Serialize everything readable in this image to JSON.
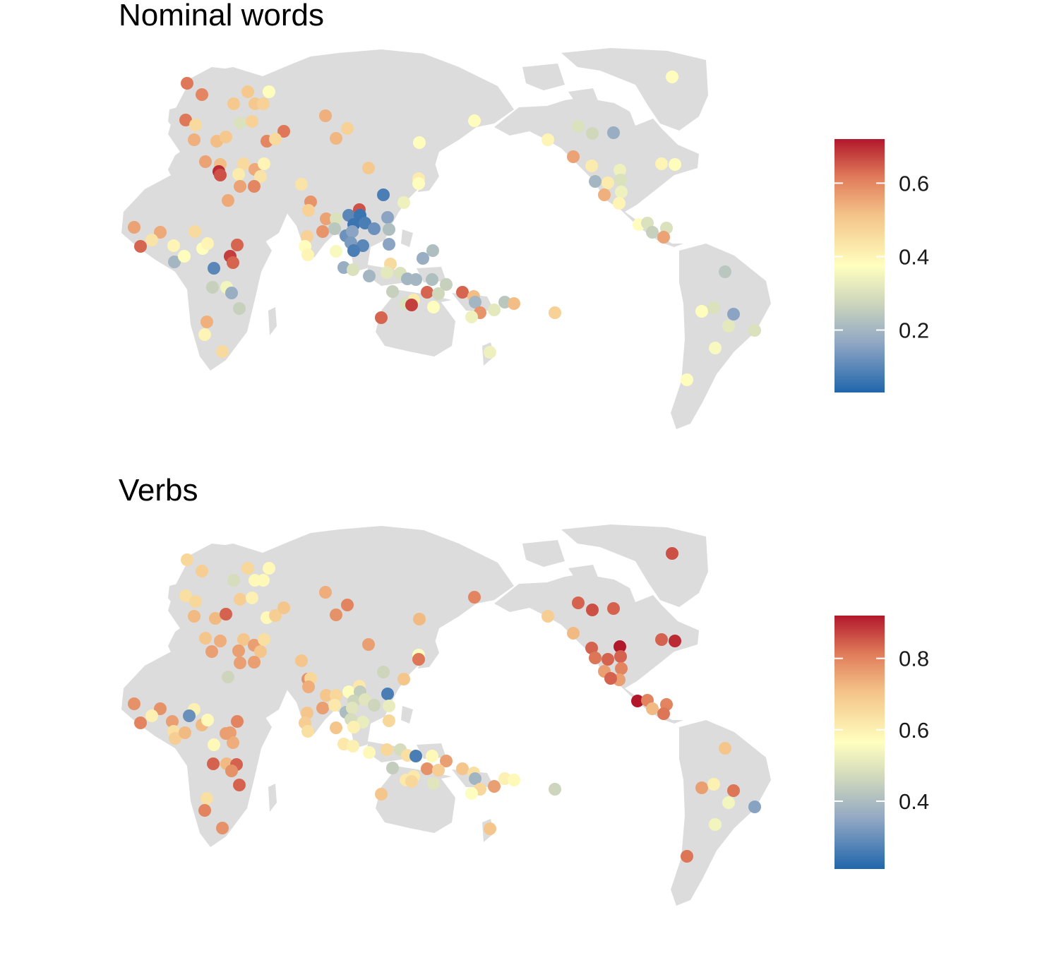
{
  "panels": [
    {
      "title": "Nominal words",
      "legend": {
        "ticks": [
          "0.6",
          "0.4",
          "0.2"
        ],
        "tick_values": [
          0.6,
          0.4,
          0.2
        ],
        "range": [
          0.03,
          0.72
        ]
      },
      "points": [
        [
          265,
          118,
          0.62
        ],
        [
          286,
          134,
          0.6
        ],
        [
          263,
          170,
          0.62
        ],
        [
          277,
          177,
          0.46
        ],
        [
          275,
          198,
          0.54
        ],
        [
          351,
          130,
          0.5
        ],
        [
          381,
          130,
          0.38
        ],
        [
          331,
          147,
          0.5
        ],
        [
          361,
          147,
          0.5
        ],
        [
          373,
          147,
          0.48
        ],
        [
          340,
          174,
          0.3
        ],
        [
          357,
          172,
          0.48
        ],
        [
          402,
          186,
          0.62
        ],
        [
          378,
          200,
          0.6
        ],
        [
          390,
          197,
          0.46
        ],
        [
          307,
          200,
          0.52
        ],
        [
          320,
          194,
          0.5
        ],
        [
          291,
          229,
          0.56
        ],
        [
          312,
          233,
          0.52
        ],
        [
          310,
          243,
          0.7
        ],
        [
          312,
          248,
          0.66
        ],
        [
          345,
          232,
          0.46
        ],
        [
          338,
          247,
          0.42
        ],
        [
          361,
          240,
          0.55
        ],
        [
          369,
          250,
          0.44
        ],
        [
          374,
          232,
          0.4
        ],
        [
          340,
          264,
          0.56
        ],
        [
          360,
          264,
          0.6
        ],
        [
          323,
          284,
          0.55
        ],
        [
          190,
          322,
          0.56
        ],
        [
          227,
          329,
          0.55
        ],
        [
          199,
          349,
          0.64
        ],
        [
          215,
          340,
          0.44
        ],
        [
          246,
          348,
          0.4
        ],
        [
          247,
          371,
          0.2
        ],
        [
          261,
          363,
          0.38
        ],
        [
          276,
          328,
          0.46
        ],
        [
          287,
          352,
          0.38
        ],
        [
          294,
          345,
          0.4
        ],
        [
          303,
          380,
          0.1
        ],
        [
          326,
          363,
          0.68
        ],
        [
          336,
          347,
          0.64
        ],
        [
          330,
          372,
          0.64
        ],
        [
          301,
          407,
          0.26
        ],
        [
          321,
          407,
          0.35
        ],
        [
          328,
          415,
          0.18
        ],
        [
          339,
          437,
          0.26
        ],
        [
          293,
          456,
          0.54
        ],
        [
          290,
          474,
          0.4
        ],
        [
          315,
          498,
          0.46
        ],
        [
          461,
          164,
          0.54
        ],
        [
          476,
          196,
          0.53
        ],
        [
          492,
          182,
          0.48
        ],
        [
          522,
          238,
          0.5
        ],
        [
          427,
          261,
          0.44
        ],
        [
          440,
          286,
          0.58
        ],
        [
          437,
          298,
          0.48
        ],
        [
          462,
          310,
          0.56
        ],
        [
          457,
          328,
          0.58
        ],
        [
          435,
          335,
          0.48
        ],
        [
          432,
          349,
          0.38
        ],
        [
          436,
          361,
          0.4
        ],
        [
          476,
          310,
          0.3
        ],
        [
          474,
          324,
          0.24
        ],
        [
          494,
          305,
          0.1
        ],
        [
          509,
          297,
          0.66
        ],
        [
          510,
          305,
          0.06
        ],
        [
          501,
          318,
          0.06
        ],
        [
          517,
          316,
          0.08
        ],
        [
          530,
          324,
          0.12
        ],
        [
          490,
          334,
          0.12
        ],
        [
          499,
          328,
          0.16
        ],
        [
          497,
          344,
          0.14
        ],
        [
          514,
          348,
          0.1
        ],
        [
          501,
          355,
          0.08
        ],
        [
          476,
          356,
          0.36
        ],
        [
          487,
          379,
          0.18
        ],
        [
          500,
          382,
          0.3
        ],
        [
          523,
          391,
          0.2
        ],
        [
          543,
          276,
          0.08
        ],
        [
          549,
          308,
          0.16
        ],
        [
          551,
          325,
          0.22
        ],
        [
          551,
          346,
          0.16
        ],
        [
          572,
          287,
          0.34
        ],
        [
          594,
          202,
          0.38
        ],
        [
          593,
          253,
          0.42
        ],
        [
          593,
          260,
          0.38
        ],
        [
          672,
          171,
          0.38
        ],
        [
          599,
          366,
          0.18
        ],
        [
          613,
          355,
          0.22
        ],
        [
          553,
          374,
          0.46
        ],
        [
          548,
          386,
          0.32
        ],
        [
          567,
          387,
          0.3
        ],
        [
          556,
          413,
          0.26
        ],
        [
          577,
          395,
          0.2
        ],
        [
          589,
          396,
          0.2
        ],
        [
          612,
          396,
          0.22
        ],
        [
          632,
          403,
          0.26
        ],
        [
          605,
          414,
          0.64
        ],
        [
          621,
          416,
          0.28
        ],
        [
          586,
          425,
          0.42
        ],
        [
          575,
          430,
          0.3
        ],
        [
          583,
          432,
          0.68
        ],
        [
          614,
          435,
          0.38
        ],
        [
          540,
          450,
          0.64
        ],
        [
          655,
          414,
          0.64
        ],
        [
          671,
          420,
          0.52
        ],
        [
          673,
          428,
          0.2
        ],
        [
          680,
          443,
          0.58
        ],
        [
          668,
          449,
          0.34
        ],
        [
          700,
          439,
          0.32
        ],
        [
          715,
          428,
          0.24
        ],
        [
          728,
          430,
          0.52
        ],
        [
          786,
          443,
          0.48
        ],
        [
          694,
          499,
          0.34
        ],
        [
          776,
          198,
          0.4
        ],
        [
          812,
          222,
          0.56
        ],
        [
          819,
          179,
          0.3
        ],
        [
          839,
          189,
          0.28
        ],
        [
          869,
          188,
          0.18
        ],
        [
          952,
          109,
          0.38
        ],
        [
          838,
          235,
          0.42
        ],
        [
          843,
          257,
          0.2
        ],
        [
          861,
          259,
          0.42
        ],
        [
          856,
          276,
          0.54
        ],
        [
          878,
          241,
          0.34
        ],
        [
          879,
          255,
          0.3
        ],
        [
          880,
          272,
          0.34
        ],
        [
          877,
          288,
          0.4
        ],
        [
          937,
          232,
          0.4
        ],
        [
          956,
          233,
          0.38
        ],
        [
          905,
          318,
          0.38
        ],
        [
          917,
          316,
          0.3
        ],
        [
          924,
          329,
          0.26
        ],
        [
          944,
          323,
          0.3
        ],
        [
          940,
          336,
          0.56
        ],
        [
          1027,
          385,
          0.24
        ],
        [
          994,
          441,
          0.38
        ],
        [
          1011,
          436,
          0.3
        ],
        [
          1039,
          445,
          0.16
        ],
        [
          1032,
          462,
          0.32
        ],
        [
          1069,
          468,
          0.3
        ],
        [
          1013,
          493,
          0.36
        ],
        [
          973,
          538,
          0.38
        ]
      ]
    },
    {
      "title": "Verbs",
      "legend": {
        "ticks": [
          "0.8",
          "0.6",
          "0.4"
        ],
        "tick_values": [
          0.8,
          0.6,
          0.4
        ],
        "range": [
          0.21,
          0.92
        ]
      },
      "points": [
        [
          265,
          793,
          0.66
        ],
        [
          286,
          809,
          0.68
        ],
        [
          263,
          844,
          0.64
        ],
        [
          277,
          852,
          0.66
        ],
        [
          275,
          873,
          0.72
        ],
        [
          305,
          876,
          0.72
        ],
        [
          320,
          870,
          0.84
        ],
        [
          351,
          805,
          0.66
        ],
        [
          381,
          805,
          0.58
        ],
        [
          331,
          822,
          0.48
        ],
        [
          361,
          822,
          0.58
        ],
        [
          373,
          822,
          0.58
        ],
        [
          340,
          849,
          0.68
        ],
        [
          357,
          847,
          0.6
        ],
        [
          378,
          875,
          0.58
        ],
        [
          390,
          872,
          0.68
        ],
        [
          402,
          861,
          0.7
        ],
        [
          291,
          904,
          0.7
        ],
        [
          312,
          908,
          0.74
        ],
        [
          300,
          923,
          0.76
        ],
        [
          345,
          906,
          0.7
        ],
        [
          338,
          922,
          0.76
        ],
        [
          360,
          914,
          0.76
        ],
        [
          369,
          923,
          0.7
        ],
        [
          374,
          906,
          0.64
        ],
        [
          340,
          939,
          0.76
        ],
        [
          360,
          938,
          0.76
        ],
        [
          323,
          959,
          0.46
        ],
        [
          190,
          997,
          0.78
        ],
        [
          227,
          1004,
          0.78
        ],
        [
          199,
          1024,
          0.8
        ],
        [
          215,
          1014,
          0.6
        ],
        [
          244,
          1022,
          0.76
        ],
        [
          246,
          1036,
          0.64
        ],
        [
          248,
          1046,
          0.68
        ],
        [
          262,
          1038,
          0.72
        ],
        [
          275,
          1005,
          0.6
        ],
        [
          268,
          1014,
          0.3
        ],
        [
          286,
          1027,
          0.72
        ],
        [
          294,
          1020,
          0.58
        ],
        [
          303,
          1055,
          0.58
        ],
        [
          326,
          1038,
          0.76
        ],
        [
          336,
          1022,
          0.8
        ],
        [
          330,
          1052,
          0.74
        ],
        [
          320,
          1039,
          0.76
        ],
        [
          302,
          1082,
          0.84
        ],
        [
          321,
          1082,
          0.72
        ],
        [
          335,
          1083,
          0.84
        ],
        [
          328,
          1092,
          0.78
        ],
        [
          339,
          1112,
          0.84
        ],
        [
          293,
          1131,
          0.64
        ],
        [
          290,
          1148,
          0.8
        ],
        [
          315,
          1173,
          0.78
        ],
        [
          461,
          839,
          0.74
        ],
        [
          476,
          871,
          0.78
        ],
        [
          492,
          857,
          0.8
        ],
        [
          522,
          913,
          0.76
        ],
        [
          427,
          936,
          0.7
        ],
        [
          436,
          962,
          0.78
        ],
        [
          440,
          961,
          0.66
        ],
        [
          437,
          973,
          0.74
        ],
        [
          462,
          985,
          0.7
        ],
        [
          457,
          1003,
          0.76
        ],
        [
          435,
          1010,
          0.7
        ],
        [
          432,
          1024,
          0.68
        ],
        [
          436,
          1036,
          0.64
        ],
        [
          476,
          985,
          0.66
        ],
        [
          474,
          999,
          0.62
        ],
        [
          494,
          980,
          0.56
        ],
        [
          509,
          972,
          0.62
        ],
        [
          510,
          980,
          0.44
        ],
        [
          501,
          993,
          0.46
        ],
        [
          517,
          991,
          0.5
        ],
        [
          530,
          999,
          0.46
        ],
        [
          490,
          1009,
          0.4
        ],
        [
          499,
          1003,
          0.5
        ],
        [
          497,
          1019,
          0.48
        ],
        [
          514,
          1023,
          0.52
        ],
        [
          501,
          1030,
          0.6
        ],
        [
          476,
          1031,
          0.7
        ],
        [
          487,
          1054,
          0.62
        ],
        [
          500,
          1057,
          0.6
        ],
        [
          523,
          1066,
          0.58
        ],
        [
          549,
          983,
          0.26
        ],
        [
          551,
          1000,
          0.52
        ],
        [
          551,
          1021,
          0.66
        ],
        [
          572,
          962,
          0.7
        ],
        [
          594,
          877,
          0.72
        ],
        [
          593,
          928,
          0.56
        ],
        [
          593,
          934,
          0.82
        ],
        [
          672,
          846,
          0.8
        ],
        [
          543,
          952,
          0.46
        ],
        [
          548,
          1062,
          0.66
        ],
        [
          567,
          1062,
          0.48
        ],
        [
          556,
          1088,
          0.44
        ],
        [
          577,
          1070,
          0.64
        ],
        [
          589,
          1071,
          0.26
        ],
        [
          612,
          1071,
          0.58
        ],
        [
          632,
          1078,
          0.76
        ],
        [
          605,
          1089,
          0.78
        ],
        [
          621,
          1091,
          0.68
        ],
        [
          586,
          1100,
          0.62
        ],
        [
          575,
          1105,
          0.62
        ],
        [
          583,
          1107,
          0.66
        ],
        [
          614,
          1110,
          0.5
        ],
        [
          540,
          1125,
          0.7
        ],
        [
          655,
          1089,
          0.7
        ],
        [
          671,
          1095,
          0.64
        ],
        [
          673,
          1103,
          0.38
        ],
        [
          680,
          1118,
          0.66
        ],
        [
          668,
          1124,
          0.56
        ],
        [
          700,
          1114,
          0.76
        ],
        [
          715,
          1103,
          0.6
        ],
        [
          728,
          1105,
          0.58
        ],
        [
          786,
          1118,
          0.46
        ],
        [
          694,
          1174,
          0.7
        ],
        [
          776,
          873,
          0.68
        ],
        [
          812,
          897,
          0.72
        ],
        [
          819,
          854,
          0.84
        ],
        [
          839,
          864,
          0.86
        ],
        [
          869,
          862,
          0.84
        ],
        [
          952,
          784,
          0.86
        ],
        [
          838,
          918,
          0.84
        ],
        [
          843,
          932,
          0.82
        ],
        [
          861,
          934,
          0.84
        ],
        [
          856,
          951,
          0.76
        ],
        [
          878,
          916,
          0.92
        ],
        [
          879,
          930,
          0.84
        ],
        [
          880,
          947,
          0.8
        ],
        [
          877,
          963,
          0.76
        ],
        [
          865,
          961,
          0.84
        ],
        [
          937,
          906,
          0.84
        ],
        [
          956,
          908,
          0.9
        ],
        [
          903,
          993,
          0.92
        ],
        [
          917,
          992,
          0.8
        ],
        [
          924,
          1004,
          0.72
        ],
        [
          944,
          998,
          0.8
        ],
        [
          940,
          1011,
          0.82
        ],
        [
          1027,
          1060,
          0.7
        ],
        [
          994,
          1116,
          0.76
        ],
        [
          1011,
          1111,
          0.6
        ],
        [
          1039,
          1120,
          0.82
        ],
        [
          1032,
          1137,
          0.54
        ],
        [
          1069,
          1143,
          0.34
        ],
        [
          1013,
          1168,
          0.54
        ],
        [
          973,
          1213,
          0.82
        ]
      ]
    }
  ]
}
